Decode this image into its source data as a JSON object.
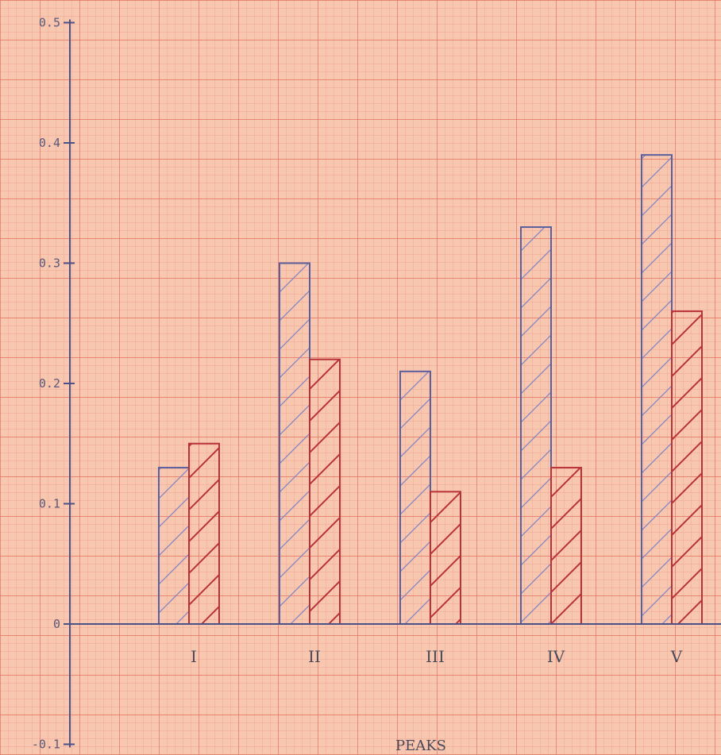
{
  "chart_data": {
    "type": "bar",
    "title": "",
    "xlabel": "PEAKS",
    "ylabel": "",
    "categories": [
      "I",
      "II",
      "III",
      "IV",
      "V"
    ],
    "ylim": [
      -0.1,
      0.5
    ],
    "yticks": [
      {
        "value": 0.5,
        "label": "0.5"
      },
      {
        "value": 0.4,
        "label": "0.4"
      },
      {
        "value": 0.3,
        "label": "0.3"
      },
      {
        "value": 0.2,
        "label": "0.2"
      },
      {
        "value": 0.1,
        "label": "0.1"
      },
      {
        "value": 0,
        "label": "0"
      },
      {
        "value": -0.1,
        "label": "-0.1"
      }
    ],
    "series": [
      {
        "values": [
          0.13,
          0.3,
          0.21,
          0.33,
          0.39
        ],
        "color": "#5b5f9e"
      },
      {
        "values": [
          0.15,
          0.22,
          0.11,
          0.13,
          0.26
        ],
        "color": "#b8323a"
      }
    ],
    "hatched": true,
    "grid": true,
    "background": "#f7c7b0",
    "grid_color": "#ef8f80"
  }
}
